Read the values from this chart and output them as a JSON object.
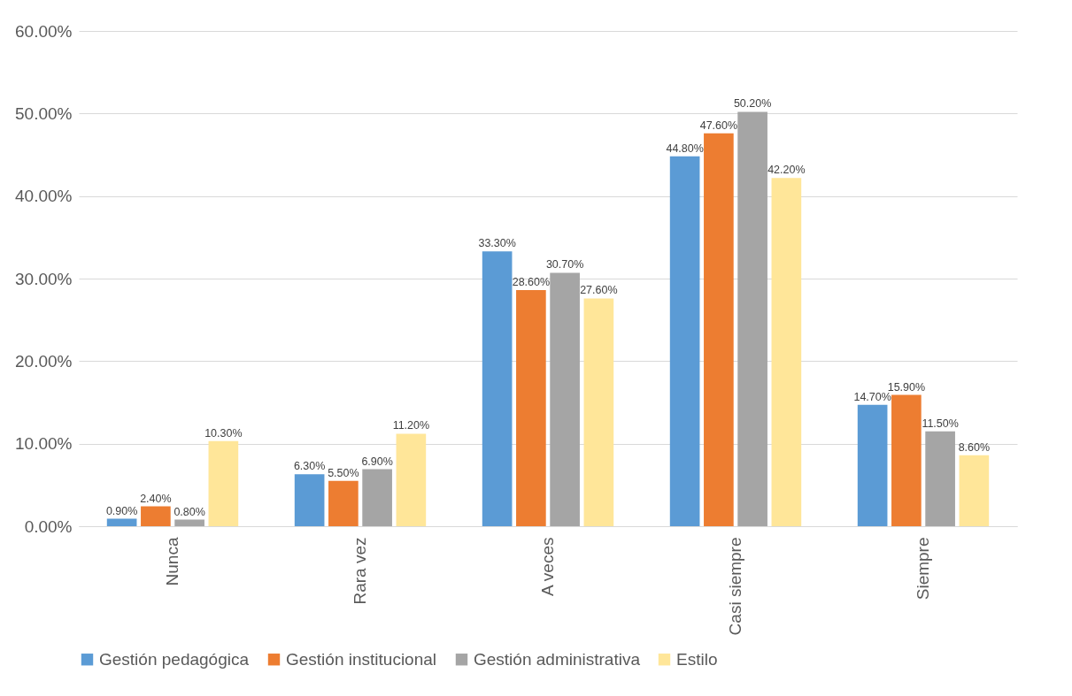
{
  "chart_data": {
    "type": "bar",
    "categories": [
      "Nunca",
      "Rara vez",
      "A veces",
      "Casi siempre",
      "Siempre"
    ],
    "series": [
      {
        "name": "Gestión pedagógica",
        "color": "#5b9bd5",
        "values": [
          0.9,
          6.3,
          33.3,
          44.8,
          14.7
        ],
        "value_labels": [
          "0.90%",
          "6.30%",
          "33.30%",
          "44.80%",
          "14.70%"
        ]
      },
      {
        "name": "Gestión institucional",
        "color": "#ed7d31",
        "values": [
          2.4,
          5.5,
          28.6,
          47.6,
          15.9
        ],
        "value_labels": [
          "2.40%",
          "5.50%",
          "28.60%",
          "47.60%",
          "15.90%"
        ]
      },
      {
        "name": "Gestión administrativa",
        "color": "#a5a5a5",
        "values": [
          0.8,
          6.9,
          30.7,
          50.2,
          11.5
        ],
        "value_labels": [
          "0.80%",
          "6.90%",
          "30.70%",
          "50.20%",
          "11.50%"
        ]
      },
      {
        "name": "Estilo",
        "color": "#ffe699",
        "values": [
          10.3,
          11.2,
          27.6,
          42.2,
          8.6
        ],
        "value_labels": [
          "10.30%",
          "11.20%",
          "27.60%",
          "42.20%",
          "8.60%"
        ]
      }
    ],
    "ylim": [
      0,
      60
    ],
    "yticks": [
      {
        "value": 0,
        "label": "0.00%"
      },
      {
        "value": 10,
        "label": "10.00%"
      },
      {
        "value": 20,
        "label": "20.00%"
      },
      {
        "value": 30,
        "label": "30.00%"
      },
      {
        "value": 40,
        "label": "40.00%"
      },
      {
        "value": 50,
        "label": "50.00%"
      },
      {
        "value": 60,
        "label": "60.00%"
      }
    ],
    "grid": "y",
    "legend": "bottom"
  }
}
